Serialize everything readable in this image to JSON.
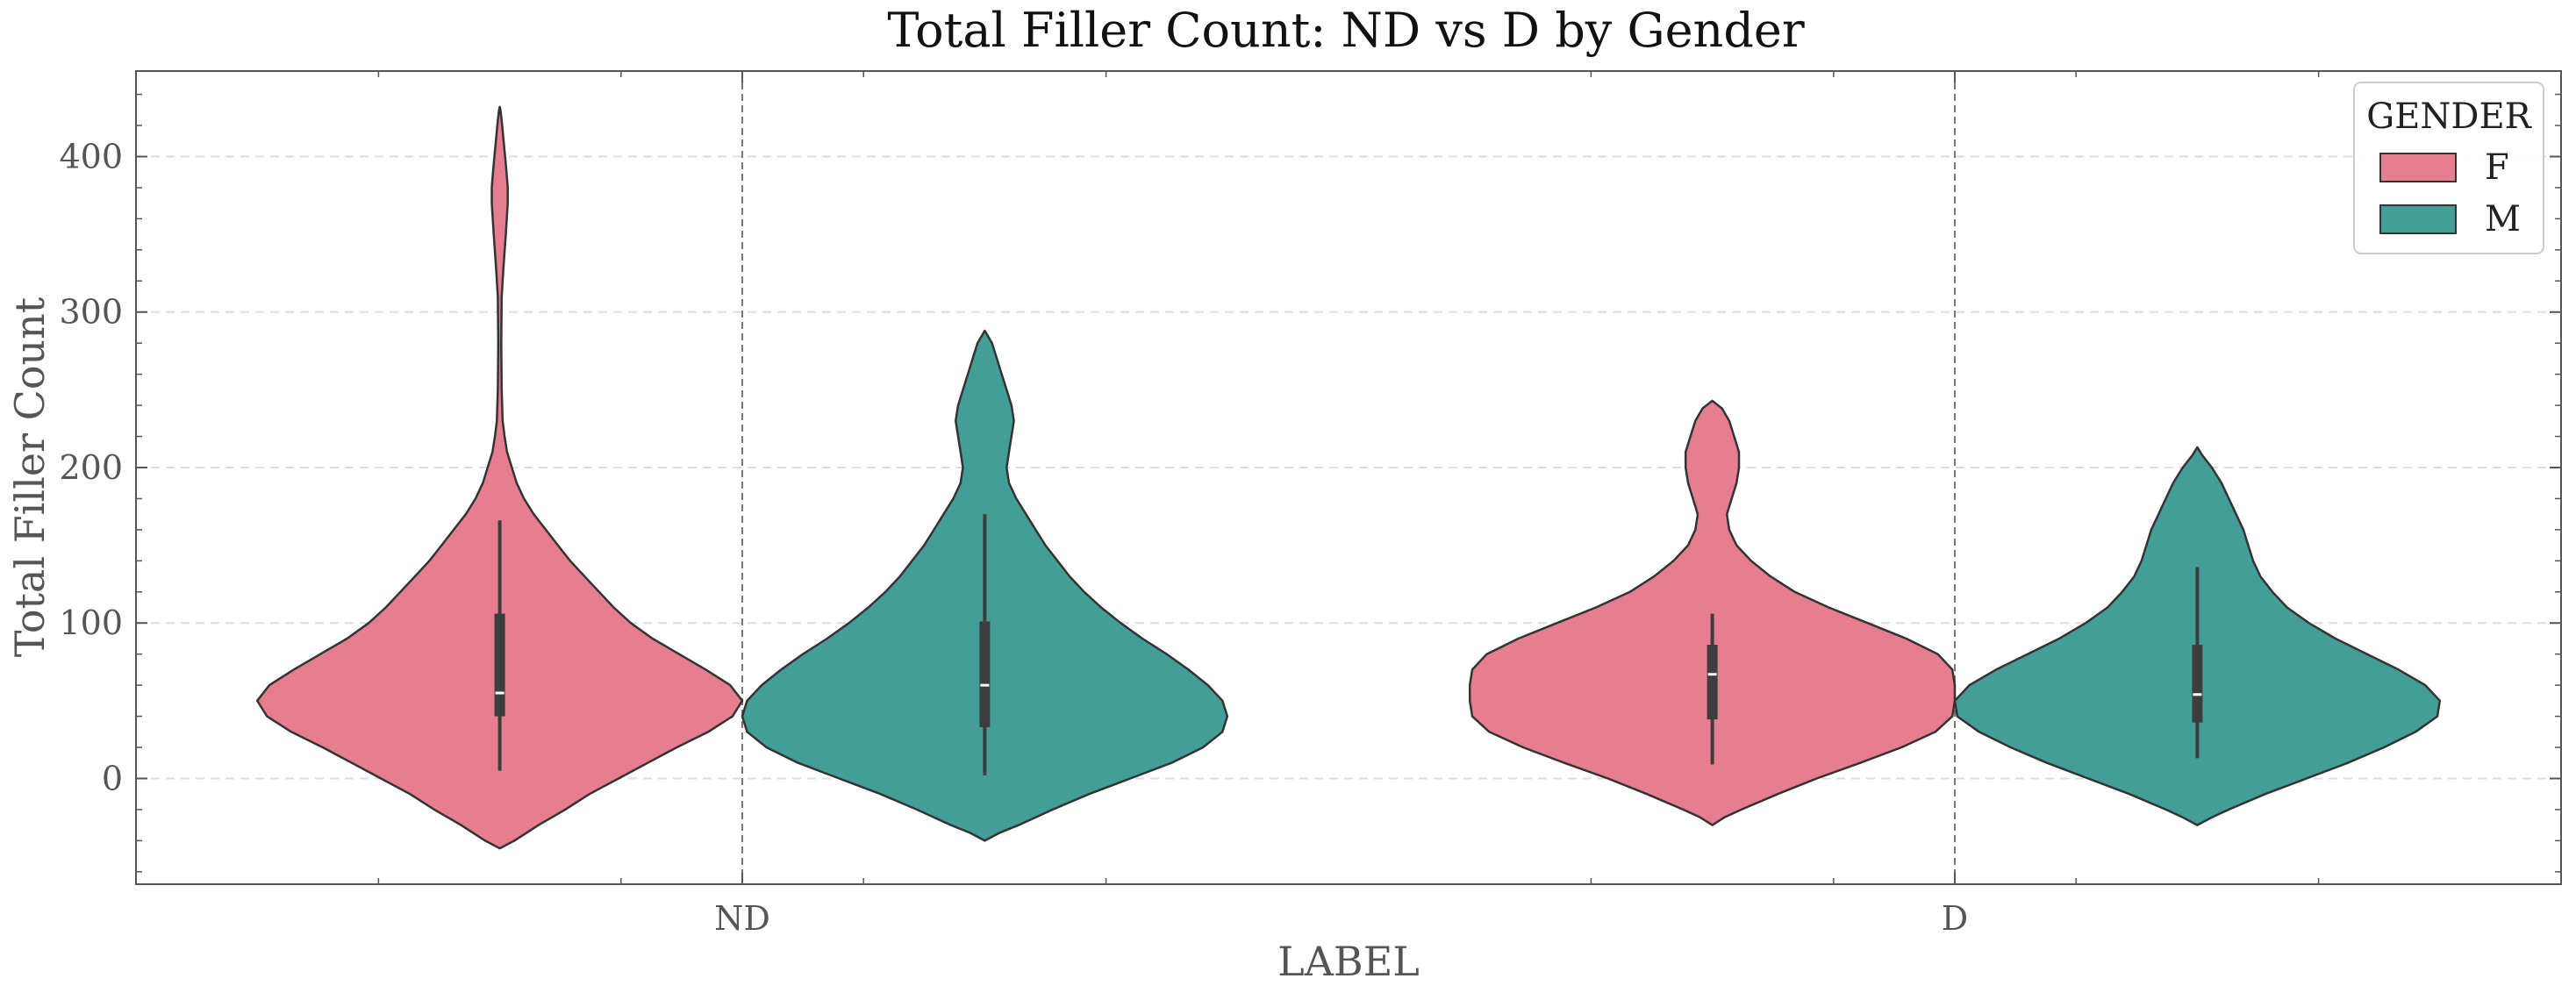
{
  "chart_data": {
    "type": "violin",
    "title": "Total Filler Count: ND vs D by Gender",
    "xlabel": "LABEL",
    "ylabel": "Total Filler Count",
    "categories": [
      "ND",
      "D"
    ],
    "ylim": [
      -68,
      455
    ],
    "yticks": [
      0,
      100,
      200,
      300,
      400
    ],
    "grid": "horizontal dashed",
    "legend": {
      "title": "GENDER",
      "position": "top-right"
    },
    "colors": {
      "F": "#e67e90",
      "M": "#449e98",
      "outline": "#333333",
      "box": "#3d3d3d"
    },
    "series": [
      {
        "name": "F",
        "violins": [
          {
            "category": "ND",
            "q1": 40,
            "median": 55,
            "q3": 106,
            "whisker_low": 5,
            "whisker_high": 166,
            "density": [
              [
                -45,
                0
              ],
              [
                -40,
                0.06
              ],
              [
                -30,
                0.16
              ],
              [
                -20,
                0.27
              ],
              [
                -10,
                0.37
              ],
              [
                0,
                0.49
              ],
              [
                10,
                0.61
              ],
              [
                20,
                0.73
              ],
              [
                30,
                0.86
              ],
              [
                40,
                0.96
              ],
              [
                50,
                1.0
              ],
              [
                60,
                0.95
              ],
              [
                70,
                0.85
              ],
              [
                80,
                0.74
              ],
              [
                90,
                0.63
              ],
              [
                100,
                0.54
              ],
              [
                110,
                0.47
              ],
              [
                120,
                0.41
              ],
              [
                130,
                0.35
              ],
              [
                140,
                0.29
              ],
              [
                150,
                0.24
              ],
              [
                160,
                0.19
              ],
              [
                170,
                0.14
              ],
              [
                180,
                0.1
              ],
              [
                190,
                0.07
              ],
              [
                200,
                0.05
              ],
              [
                210,
                0.03
              ],
              [
                220,
                0.02
              ],
              [
                230,
                0.012
              ],
              [
                250,
                0.008
              ],
              [
                280,
                0.006
              ],
              [
                310,
                0.008
              ],
              [
                330,
                0.016
              ],
              [
                350,
                0.025
              ],
              [
                370,
                0.033
              ],
              [
                380,
                0.033
              ],
              [
                390,
                0.028
              ],
              [
                400,
                0.022
              ],
              [
                410,
                0.016
              ],
              [
                420,
                0.01
              ],
              [
                430,
                0.003
              ],
              [
                432,
                0
              ]
            ]
          },
          {
            "category": "D",
            "q1": 38,
            "median": 67,
            "q3": 86,
            "whisker_low": 9,
            "whisker_high": 106,
            "density": [
              [
                -30,
                0
              ],
              [
                -25,
                0.05
              ],
              [
                -20,
                0.12
              ],
              [
                -10,
                0.27
              ],
              [
                0,
                0.43
              ],
              [
                10,
                0.61
              ],
              [
                20,
                0.78
              ],
              [
                30,
                0.92
              ],
              [
                40,
                0.99
              ],
              [
                50,
                1.0
              ],
              [
                60,
                1.0
              ],
              [
                70,
                0.99
              ],
              [
                80,
                0.93
              ],
              [
                90,
                0.8
              ],
              [
                100,
                0.64
              ],
              [
                110,
                0.48
              ],
              [
                120,
                0.34
              ],
              [
                130,
                0.24
              ],
              [
                140,
                0.16
              ],
              [
                150,
                0.1
              ],
              [
                160,
                0.07
              ],
              [
                170,
                0.06
              ],
              [
                180,
                0.08
              ],
              [
                190,
                0.1
              ],
              [
                200,
                0.11
              ],
              [
                210,
                0.11
              ],
              [
                220,
                0.09
              ],
              [
                230,
                0.07
              ],
              [
                238,
                0.04
              ],
              [
                243,
                0
              ]
            ]
          }
        ]
      },
      {
        "name": "M",
        "violins": [
          {
            "category": "ND",
            "q1": 33,
            "median": 60,
            "q3": 101,
            "whisker_low": 2,
            "whisker_high": 170,
            "density": [
              [
                -40,
                0
              ],
              [
                -35,
                0.06
              ],
              [
                -30,
                0.14
              ],
              [
                -20,
                0.28
              ],
              [
                -10,
                0.43
              ],
              [
                0,
                0.6
              ],
              [
                10,
                0.77
              ],
              [
                20,
                0.9
              ],
              [
                30,
                0.98
              ],
              [
                40,
                1.0
              ],
              [
                50,
                0.98
              ],
              [
                60,
                0.92
              ],
              [
                70,
                0.84
              ],
              [
                80,
                0.75
              ],
              [
                90,
                0.65
              ],
              [
                100,
                0.56
              ],
              [
                110,
                0.48
              ],
              [
                120,
                0.41
              ],
              [
                130,
                0.35
              ],
              [
                140,
                0.3
              ],
              [
                150,
                0.25
              ],
              [
                160,
                0.21
              ],
              [
                170,
                0.17
              ],
              [
                180,
                0.13
              ],
              [
                190,
                0.1
              ],
              [
                200,
                0.09
              ],
              [
                210,
                0.1
              ],
              [
                220,
                0.11
              ],
              [
                230,
                0.12
              ],
              [
                240,
                0.11
              ],
              [
                250,
                0.09
              ],
              [
                260,
                0.07
              ],
              [
                270,
                0.05
              ],
              [
                280,
                0.03
              ],
              [
                288,
                0
              ]
            ]
          },
          {
            "category": "D",
            "q1": 36,
            "median": 54,
            "q3": 86,
            "whisker_low": 13,
            "whisker_high": 136,
            "density": [
              [
                -30,
                0
              ],
              [
                -25,
                0.06
              ],
              [
                -20,
                0.13
              ],
              [
                -10,
                0.28
              ],
              [
                0,
                0.45
              ],
              [
                10,
                0.62
              ],
              [
                20,
                0.77
              ],
              [
                30,
                0.9
              ],
              [
                40,
                0.99
              ],
              [
                50,
                1.0
              ],
              [
                60,
                0.94
              ],
              [
                70,
                0.83
              ],
              [
                80,
                0.7
              ],
              [
                90,
                0.57
              ],
              [
                100,
                0.46
              ],
              [
                110,
                0.37
              ],
              [
                120,
                0.31
              ],
              [
                130,
                0.26
              ],
              [
                140,
                0.23
              ],
              [
                150,
                0.21
              ],
              [
                160,
                0.19
              ],
              [
                170,
                0.16
              ],
              [
                180,
                0.13
              ],
              [
                190,
                0.1
              ],
              [
                200,
                0.06
              ],
              [
                208,
                0.02
              ],
              [
                213,
                0
              ]
            ]
          }
        ]
      }
    ]
  }
}
